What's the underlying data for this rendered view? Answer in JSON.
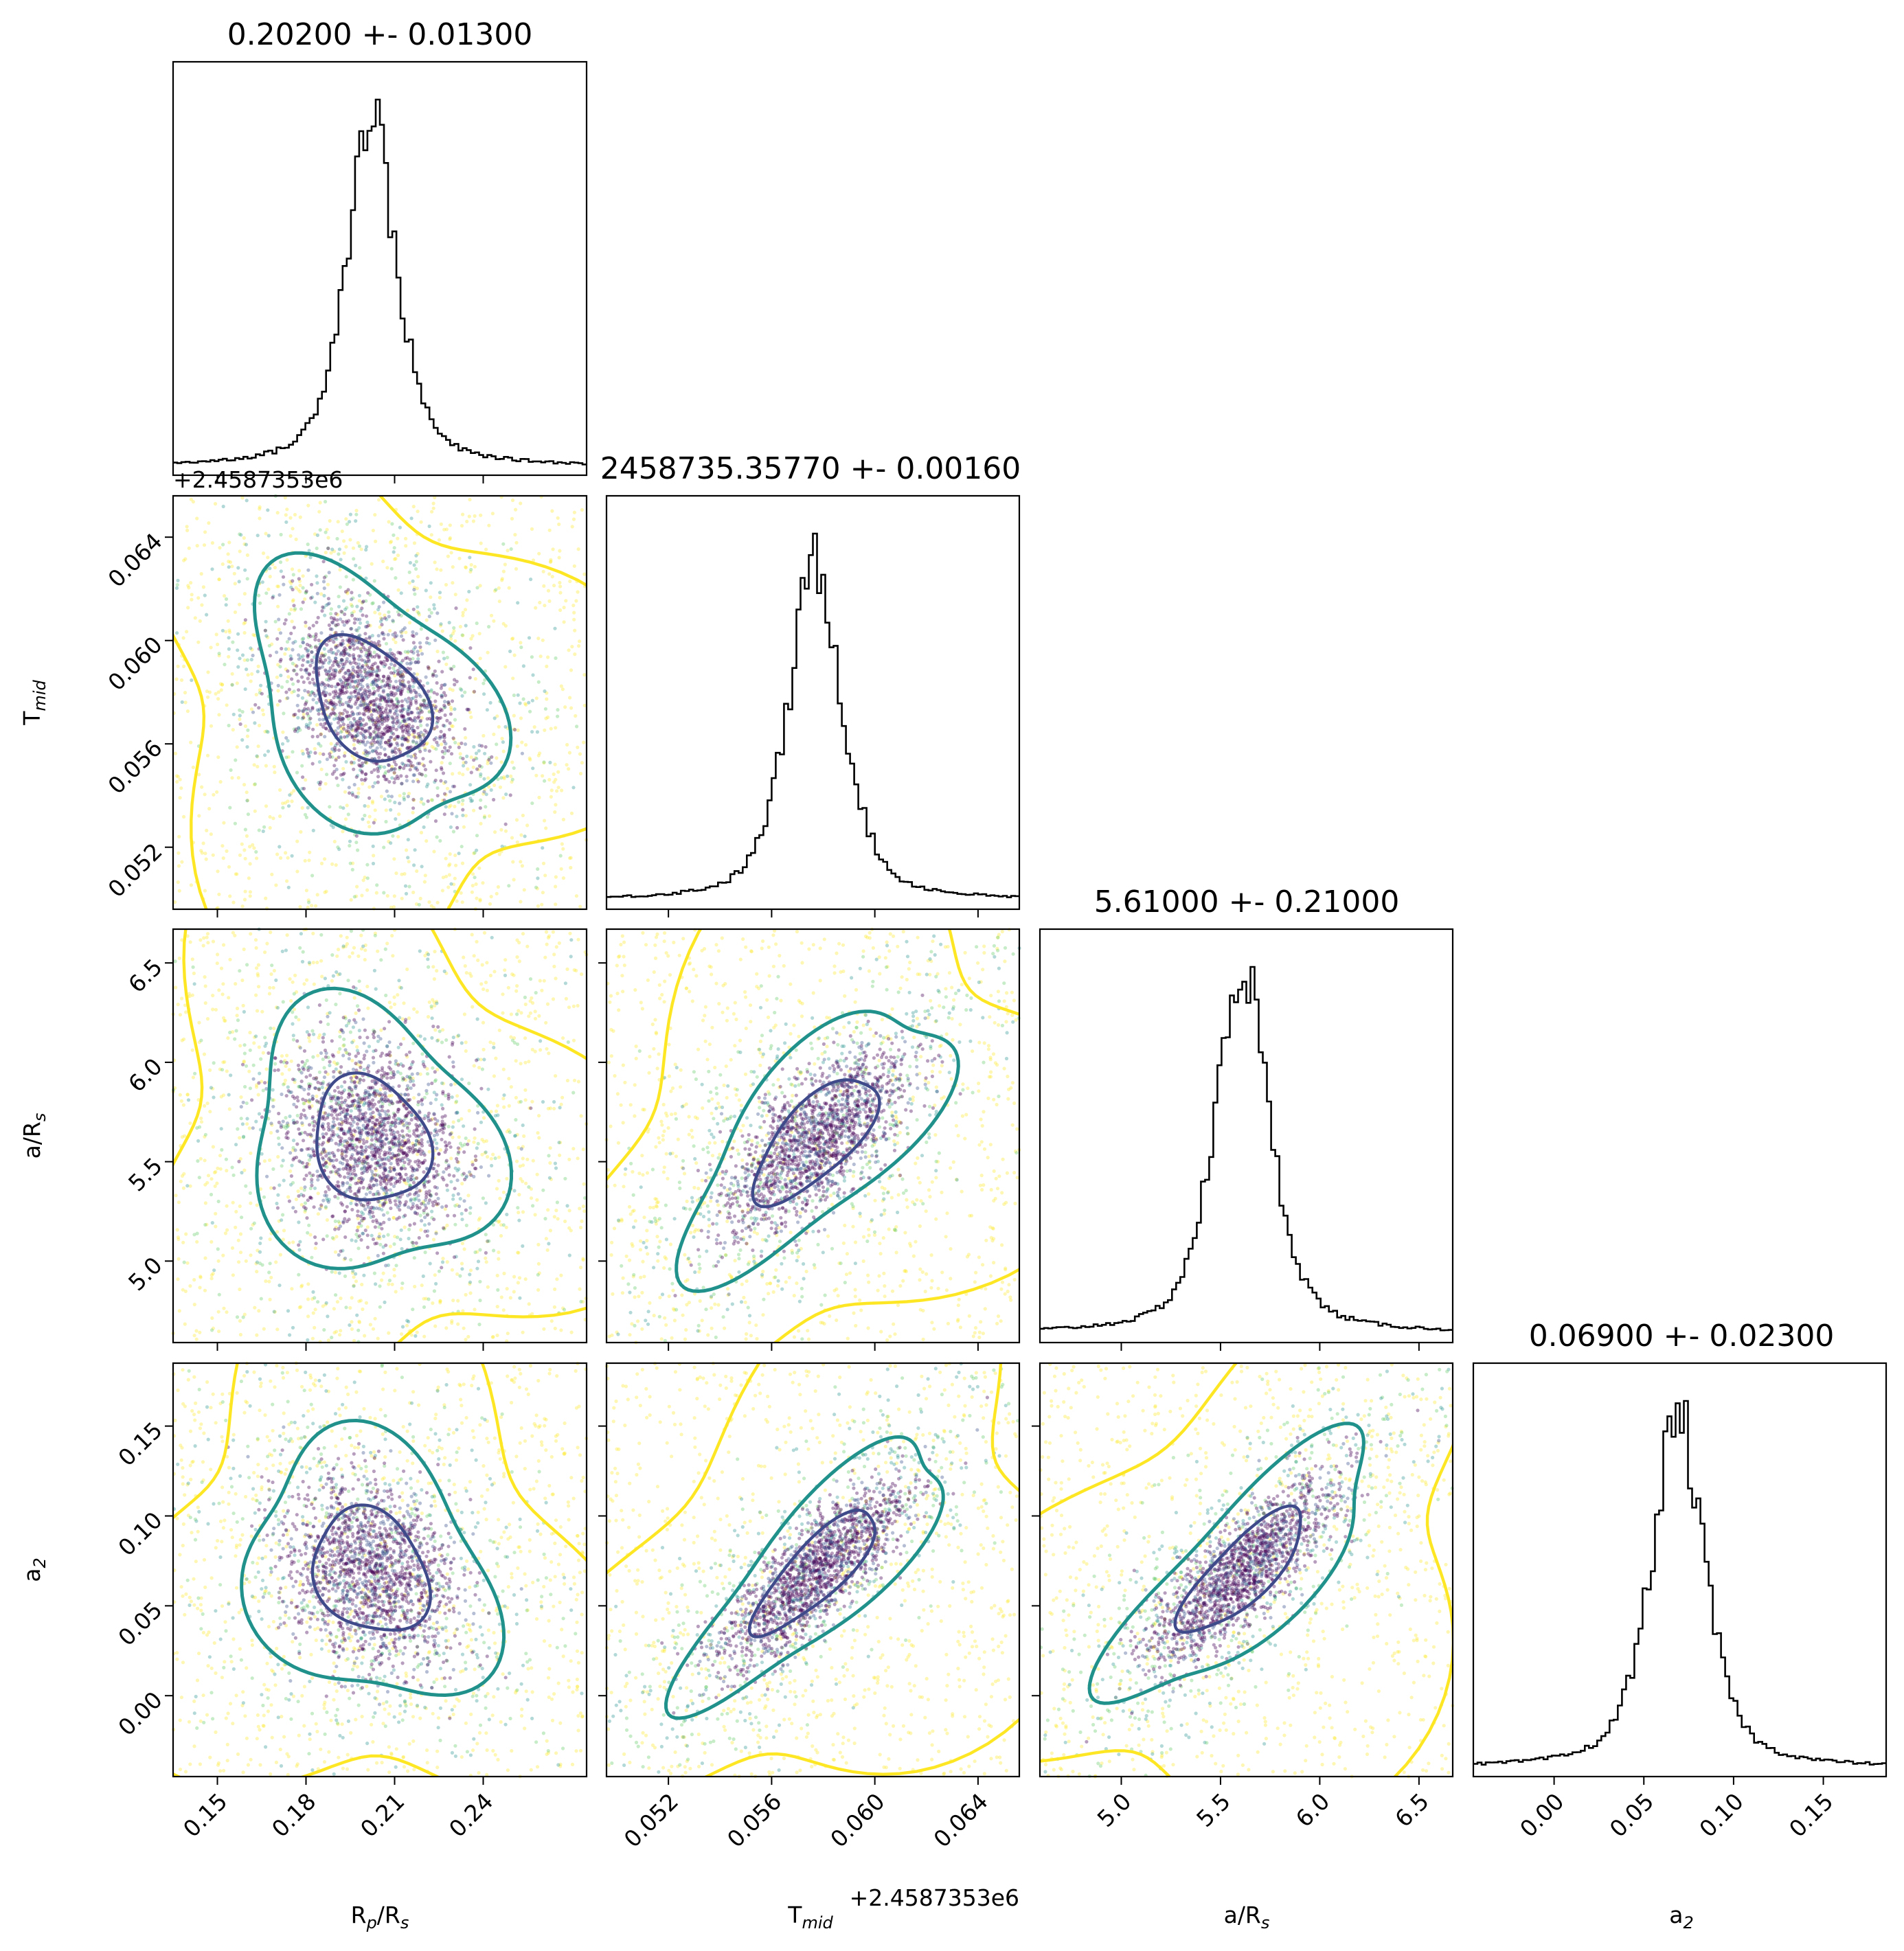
{
  "chart_data": {
    "type": "corner",
    "offset_label": "+2.4587353e6",
    "parameters": [
      {
        "id": "rp",
        "label_main": "R",
        "label_sub": "p",
        "label_tail": "/R",
        "label_sub2": "s",
        "range": [
          0.135,
          0.275
        ],
        "ticks": [
          0.15,
          0.18,
          0.21,
          0.24
        ],
        "tick_labels": [
          "0.15",
          "0.18",
          "0.21",
          "0.24"
        ],
        "title": "0.20200 +- 0.01300",
        "center": 0.202,
        "width": 0.013
      },
      {
        "id": "tmid",
        "label_main": "T",
        "label_sub": "mid",
        "label_tail": "",
        "label_sub2": "",
        "range": [
          0.0496,
          0.0656
        ],
        "ticks": [
          0.052,
          0.056,
          0.06,
          0.064
        ],
        "tick_labels": [
          "0.052",
          "0.056",
          "0.060",
          "0.064"
        ],
        "title": "2458735.35770 +- 0.00160",
        "center": 0.0577,
        "width": 0.0016
      },
      {
        "id": "ars",
        "label_main": "a/R",
        "label_sub": "s",
        "label_tail": "",
        "label_sub2": "",
        "range": [
          4.59,
          6.67
        ],
        "ticks": [
          5.0,
          5.5,
          6.0,
          6.5
        ],
        "tick_labels": [
          "5.0",
          "5.5",
          "6.0",
          "6.5"
        ],
        "title": "5.61000 +- 0.21000",
        "center": 5.61,
        "width": 0.21
      },
      {
        "id": "a2",
        "label_main": "a",
        "label_sub": "2",
        "label_tail": "",
        "label_sub2": "",
        "range": [
          -0.045,
          0.185
        ],
        "ticks": [
          0.0,
          0.05,
          0.1,
          0.15
        ],
        "tick_labels": [
          "0.00",
          "0.05",
          "0.10",
          "0.15"
        ],
        "title": "0.06900 +- 0.02300",
        "center": 0.069,
        "width": 0.023
      }
    ],
    "colors": {
      "inner_contour": "#3f4a8a",
      "middle_contour": "#21918c",
      "outer_contour": "#fde725",
      "dense_points": "#440154",
      "sparse_points": "#fde725",
      "histogram": "#000000"
    }
  }
}
